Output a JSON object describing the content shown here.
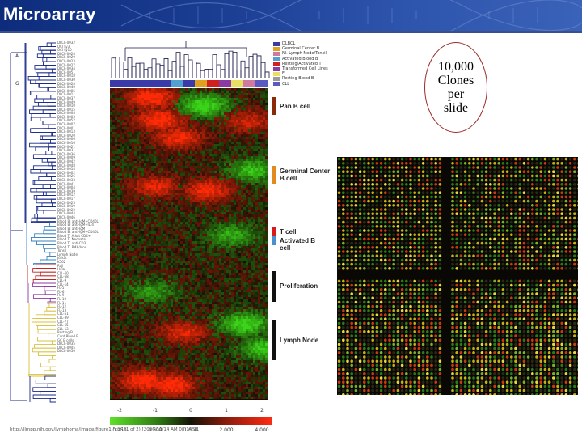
{
  "header": {
    "title": "Microarray"
  },
  "callout": {
    "lines": [
      "10,000",
      "Clones",
      "per",
      "slide"
    ]
  },
  "figure": {
    "dendro_letters": [
      "A",
      "G"
    ],
    "cluster_legend": [
      {
        "label": "DLBCL",
        "color": "#3a3aa8"
      },
      {
        "label": "Germinal Center B",
        "color": "#e0a020"
      },
      {
        "label": "Nl. Lymph Node/Tonsil",
        "color": "#d07aa0"
      },
      {
        "label": "Activated Blood B",
        "color": "#50a0d0"
      },
      {
        "label": "Resting/Activated T",
        "color": "#d02020"
      },
      {
        "label": "Transformed Cell Lines",
        "color": "#8a3aa0"
      },
      {
        "label": "FL",
        "color": "#e8e060"
      },
      {
        "label": "Resting Blood B",
        "color": "#9a9a9a"
      },
      {
        "label": "CLL",
        "color": "#5a5ac0"
      }
    ],
    "signatures": [
      {
        "label": "Pan B cell",
        "color": "#8a2a08"
      },
      {
        "label": "Germinal Center B cell",
        "color": "#e08a20"
      },
      {
        "label": "T cell",
        "color": "#d81a1a"
      },
      {
        "label": "Activated B cell",
        "color": "#4a90d0"
      },
      {
        "label": "Proliferation",
        "color": "#111111"
      },
      {
        "label": "Lymph Node",
        "color": "#111111"
      }
    ],
    "scale": {
      "top_ticks": [
        "-2",
        "-1",
        "0",
        "1",
        "2"
      ],
      "bottom_ticks": [
        "0.250",
        "0.500",
        "1.000",
        "2.000",
        "4.000"
      ]
    },
    "sample_labels": [
      "DLCL-0032",
      "OCI Ly3",
      "OCI Ly10",
      "DLCL-0024",
      "DLCL-0029",
      "DLCL-0023",
      "DLCL-0027",
      "DLCL-0034",
      "DLCL-0051",
      "DLCL-0018",
      "DLCL-0030",
      "DLCL-0028",
      "DLCL-0040",
      "DLCL-0005",
      "DLCL-0011",
      "DLCL-0037",
      "DLCL-0049",
      "DLCL-0010",
      "DLCL-0015",
      "DLCL-0008",
      "DLCL-0003",
      "DLCL-0052",
      "DLCL-0007",
      "DLCL-0001",
      "DLCL-0013",
      "DLCL-0020",
      "DLCL-0006",
      "DLCL-0016",
      "DLCL-0021",
      "DLCL-0031",
      "DLCL-0036",
      "DLCL-0009",
      "DLCL-0042",
      "DLCL-0048",
      "DLCL-0014",
      "DLCL-0002",
      "DLCL-0026",
      "DLCL-0033",
      "DLCL-0041",
      "DLCL-0004",
      "DLCL-0039",
      "DLCL-0012",
      "DLCL-0017",
      "DLCL-0025",
      "DLCL-0019",
      "DLCL-0022",
      "DLCL-0044",
      "DLCL-0046",
      "Blood B; anti-IgM+CD40L",
      "Blood B; anti-IgM+IL-4",
      "Blood B; anti-IgM",
      "Blood B; anti-IgM+CD40L",
      "Blood T; Adult CD4+",
      "Blood T; Neonatal",
      "Blood T; anti-CD3",
      "Blood T; PMA/Iono",
      "Tonsil",
      "Lymph Node",
      "Jurkat",
      "K562",
      "Raji",
      "Hela",
      "CLL-60",
      "CLL-68",
      "CLL-9",
      "CLL-14",
      "FL-5",
      "FL-6",
      "FL-9",
      "FL-10",
      "FL-11",
      "FL-12",
      "FL-13",
      "CLL-51",
      "CLL-39",
      "CLL-77",
      "CLL-65",
      "CLL-13",
      "Resting B",
      "Cord Blood B",
      "GC B cells",
      "DLCL-0035",
      "DLCL-0045",
      "DLCL-0050"
    ],
    "source_url": "http://llmpp.nih.gov/lymphoma/image/figure1.html (1 of 2) [2000/11/14 AM 08:14:21]"
  }
}
